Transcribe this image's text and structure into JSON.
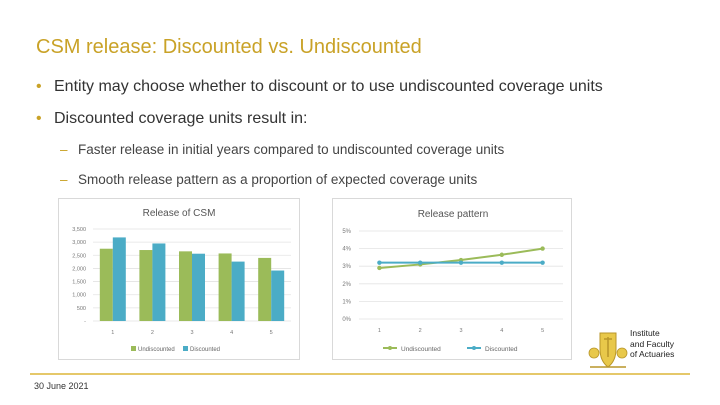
{
  "slide": {
    "title": "CSM release: Discounted vs. Undiscounted",
    "bullets": [
      "Entity may choose whether to discount or to use undiscounted coverage units",
      "Discounted coverage units result in:"
    ],
    "sub_bullets": [
      "Faster release in initial years compared to undiscounted coverage units",
      "Smooth release pattern as a proportion of expected coverage units"
    ],
    "date": "30 June 2021",
    "logo_text": [
      "Institute",
      "and Faculty",
      "of Actuaries"
    ],
    "colors": {
      "accent": "#c9a227",
      "undiscounted": "#9bbb59",
      "discounted": "#4bacc6"
    }
  },
  "chart_data": [
    {
      "type": "bar",
      "title": "Release of CSM",
      "categories": [
        "1",
        "2",
        "3",
        "4",
        "5"
      ],
      "series": [
        {
          "name": "Undiscounted",
          "values": [
            2750,
            2700,
            2650,
            2570,
            2400
          ]
        },
        {
          "name": "Discounted",
          "values": [
            3180,
            2950,
            2560,
            2260,
            1920
          ]
        }
      ],
      "ylim": [
        0,
        3500
      ],
      "yticks": [
        "3,500",
        "3,000",
        "2,500",
        "2,000",
        "1,500",
        "1,000",
        "500",
        "-"
      ],
      "grid": true,
      "legend": "bottom"
    },
    {
      "type": "line",
      "title": "Release pattern",
      "categories": [
        "1",
        "2",
        "3",
        "4",
        "5"
      ],
      "series": [
        {
          "name": "Undiscounted",
          "values": [
            2.9,
            3.1,
            3.35,
            3.65,
            4.0
          ]
        },
        {
          "name": "Discounted",
          "values": [
            3.2,
            3.2,
            3.2,
            3.2,
            3.2
          ]
        }
      ],
      "ylim": [
        0,
        5
      ],
      "yticks": [
        "5%",
        "4%",
        "3%",
        "2%",
        "1%",
        "0%"
      ],
      "grid": true,
      "legend": "bottom"
    }
  ]
}
